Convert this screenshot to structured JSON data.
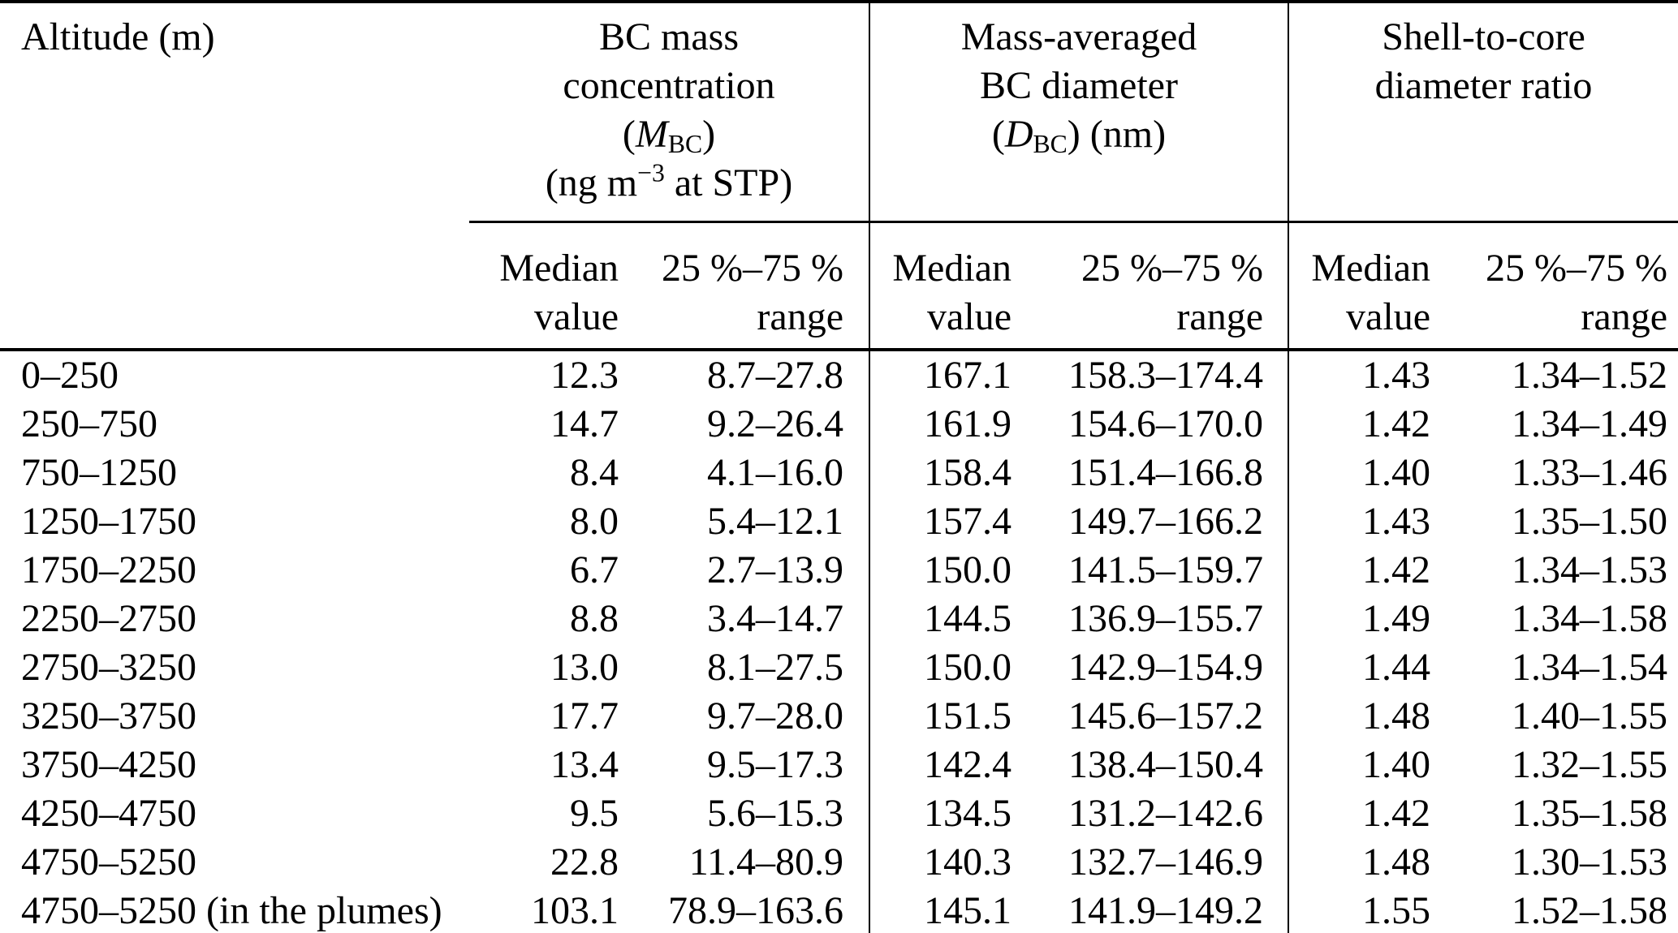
{
  "page": {
    "background": "#ffffff",
    "text_color": "#000000"
  },
  "table": {
    "altitude_header": "Altitude (m)",
    "groups": [
      {
        "line1": "BC mass",
        "line2": "concentration",
        "sym_open": "(",
        "symbol": "M",
        "symbol_sub": "BC",
        "sym_close": ")",
        "unit_pre": "(ng m",
        "unit_sup": "−3",
        "unit_post": " at STP)"
      },
      {
        "line1": "Mass-averaged",
        "line2": "BC diameter",
        "sym_open": "(",
        "symbol": "D",
        "symbol_sub": "BC",
        "sym_close": ") (nm)"
      },
      {
        "line1": "Shell-to-core",
        "line2": "diameter ratio"
      }
    ],
    "subheader": {
      "median_line1": "Median",
      "median_line2": "value",
      "range_line1": "25 %–75 %",
      "range_line2": "range"
    },
    "rows": [
      [
        "0–250",
        "12.3",
        "8.7–27.8",
        "167.1",
        "158.3–174.4",
        "1.43",
        "1.34–1.52"
      ],
      [
        "250–750",
        "14.7",
        "9.2–26.4",
        "161.9",
        "154.6–170.0",
        "1.42",
        "1.34–1.49"
      ],
      [
        "750–1250",
        "8.4",
        "4.1–16.0",
        "158.4",
        "151.4–166.8",
        "1.40",
        "1.33–1.46"
      ],
      [
        "1250–1750",
        "8.0",
        "5.4–12.1",
        "157.4",
        "149.7–166.2",
        "1.43",
        "1.35–1.50"
      ],
      [
        "1750–2250",
        "6.7",
        "2.7–13.9",
        "150.0",
        "141.5–159.7",
        "1.42",
        "1.34–1.53"
      ],
      [
        "2250–2750",
        "8.8",
        "3.4–14.7",
        "144.5",
        "136.9–155.7",
        "1.49",
        "1.34–1.58"
      ],
      [
        "2750–3250",
        "13.0",
        "8.1–27.5",
        "150.0",
        "142.9–154.9",
        "1.44",
        "1.34–1.54"
      ],
      [
        "3250–3750",
        "17.7",
        "9.7–28.0",
        "151.5",
        "145.6–157.2",
        "1.48",
        "1.40–1.55"
      ],
      [
        "3750–4250",
        "13.4",
        "9.5–17.3",
        "142.4",
        "138.4–150.4",
        "1.40",
        "1.32–1.55"
      ],
      [
        "4250–4750",
        "9.5",
        "5.6–15.3",
        "134.5",
        "131.2–142.6",
        "1.42",
        "1.35–1.58"
      ],
      [
        "4750–5250",
        "22.8",
        "11.4–80.9",
        "140.3",
        "132.7–146.9",
        "1.48",
        "1.30–1.53"
      ],
      [
        "4750–5250 (in the plumes)",
        "103.1",
        "78.9–163.6",
        "145.1",
        "141.9–149.2",
        "1.55",
        "1.52–1.58"
      ]
    ]
  }
}
